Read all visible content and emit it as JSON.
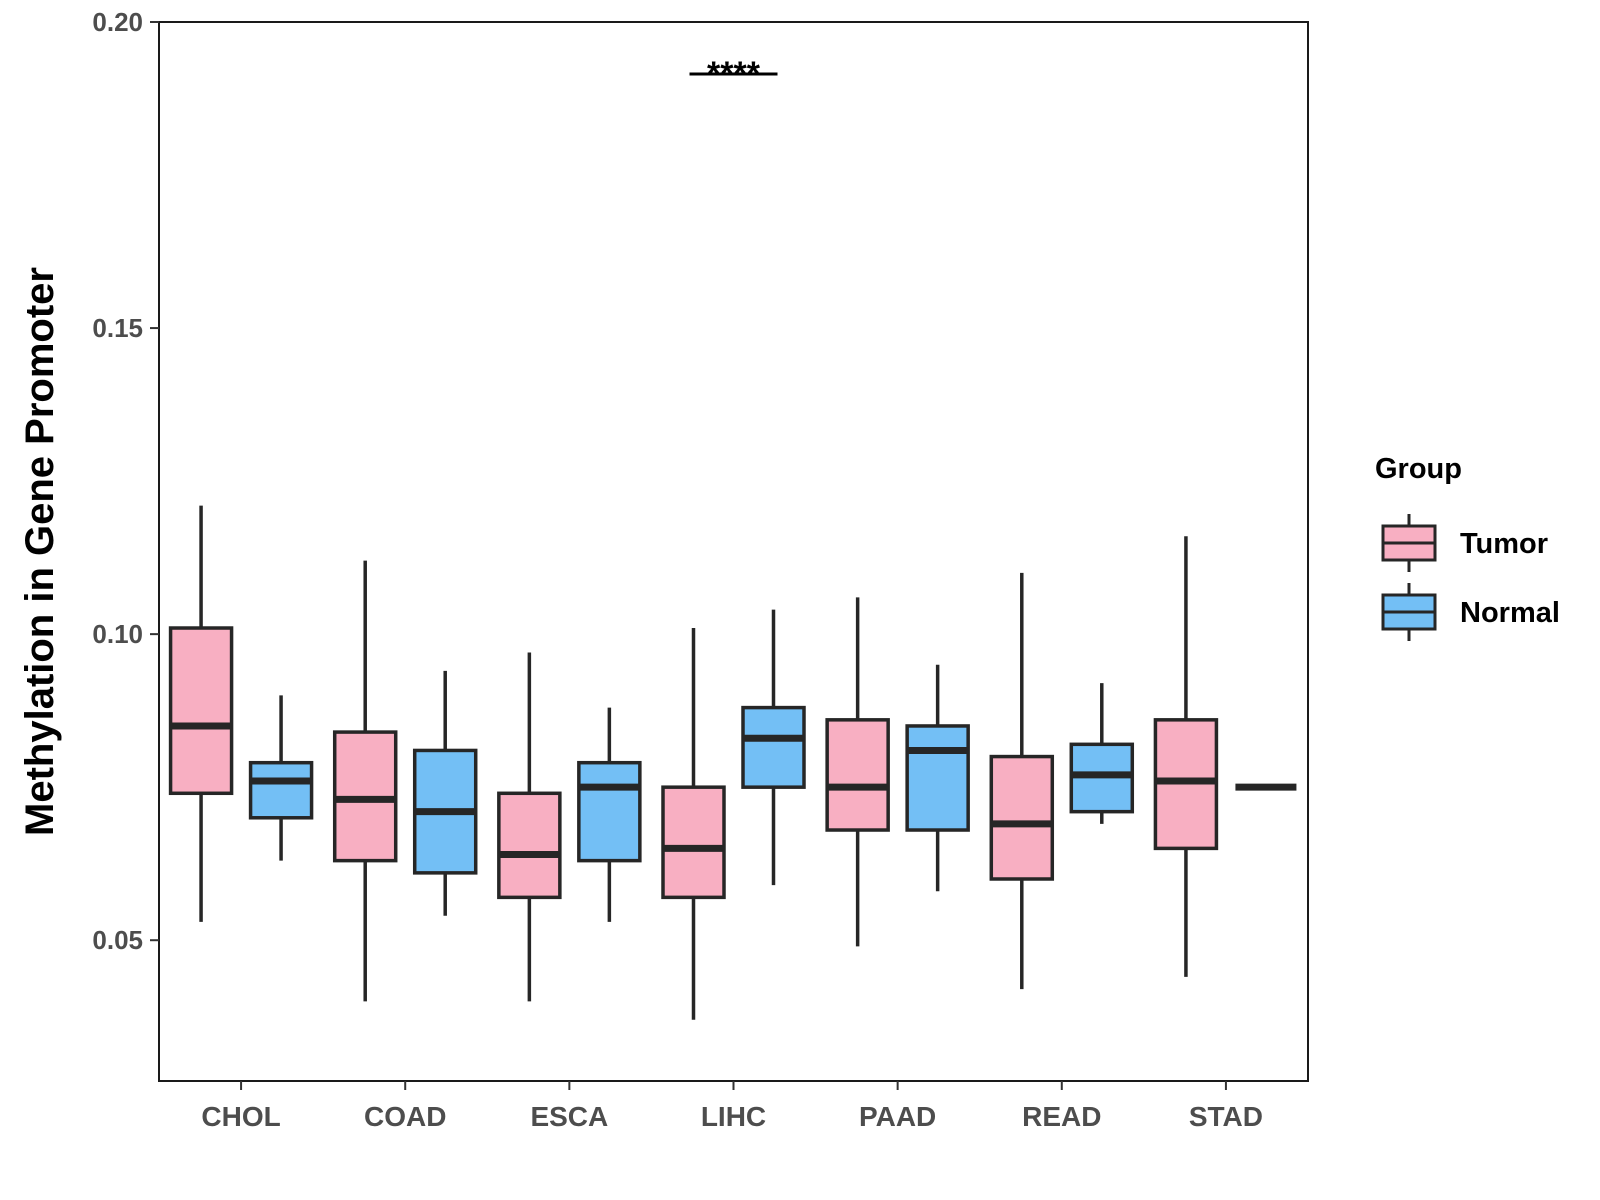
{
  "chart_data": {
    "type": "boxplot",
    "title": "",
    "xlabel": "",
    "ylabel": "Methylation in Gene Promoter",
    "ylim": [
      0.027,
      0.2
    ],
    "yticks": [
      "0.05",
      "0.10",
      "0.15",
      "0.20"
    ],
    "ytick_values": [
      0.05,
      0.1,
      0.15,
      0.2
    ],
    "grid": false,
    "legend": {
      "title": "Group",
      "position": "right",
      "entries": [
        {
          "name": "Tumor",
          "color": "#F8AFC2"
        },
        {
          "name": "Normal",
          "color": "#73BFF5"
        }
      ]
    },
    "categories": [
      "CHOL",
      "COAD",
      "ESCA",
      "LIHC",
      "PAAD",
      "READ",
      "STAD"
    ],
    "series": [
      {
        "name": "Tumor",
        "color": "#F8AFC2",
        "boxes": [
          {
            "min": 0.053,
            "q1": 0.074,
            "median": 0.085,
            "q3": 0.101,
            "max": 0.121
          },
          {
            "min": 0.04,
            "q1": 0.063,
            "median": 0.073,
            "q3": 0.084,
            "max": 0.112
          },
          {
            "min": 0.04,
            "q1": 0.057,
            "median": 0.064,
            "q3": 0.074,
            "max": 0.097
          },
          {
            "min": 0.037,
            "q1": 0.057,
            "median": 0.065,
            "q3": 0.075,
            "max": 0.101
          },
          {
            "min": 0.049,
            "q1": 0.068,
            "median": 0.075,
            "q3": 0.086,
            "max": 0.106
          },
          {
            "min": 0.042,
            "q1": 0.06,
            "median": 0.069,
            "q3": 0.08,
            "max": 0.11
          },
          {
            "min": 0.044,
            "q1": 0.065,
            "median": 0.076,
            "q3": 0.086,
            "max": 0.116
          }
        ]
      },
      {
        "name": "Normal",
        "color": "#73BFF5",
        "boxes": [
          {
            "min": 0.063,
            "q1": 0.07,
            "median": 0.076,
            "q3": 0.079,
            "max": 0.09
          },
          {
            "min": 0.054,
            "q1": 0.061,
            "median": 0.071,
            "q3": 0.081,
            "max": 0.094
          },
          {
            "min": 0.053,
            "q1": 0.063,
            "median": 0.075,
            "q3": 0.079,
            "max": 0.088
          },
          {
            "min": 0.059,
            "q1": 0.075,
            "median": 0.083,
            "q3": 0.088,
            "max": 0.104
          },
          {
            "min": 0.058,
            "q1": 0.068,
            "median": 0.081,
            "q3": 0.085,
            "max": 0.095
          },
          {
            "min": 0.069,
            "q1": 0.071,
            "median": 0.077,
            "q3": 0.082,
            "max": 0.092
          },
          {
            "min": 0.075,
            "q1": 0.075,
            "median": 0.075,
            "q3": 0.075,
            "max": 0.075
          }
        ]
      }
    ],
    "annotations": [
      {
        "text": "****",
        "category": "LIHC",
        "y": 0.192
      }
    ]
  }
}
